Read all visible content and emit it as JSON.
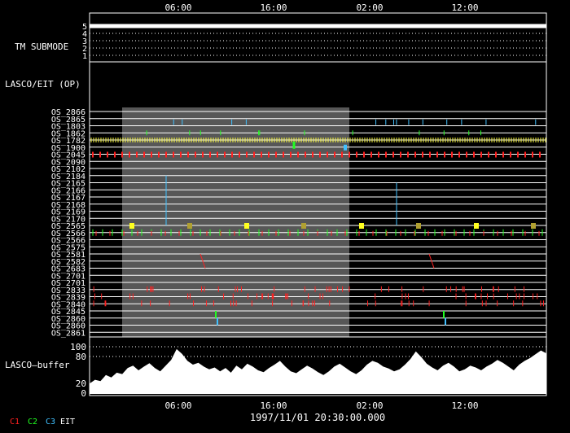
{
  "title": "1997/11/01 20:30:00.000",
  "time_ticks": [
    "06:00",
    "16:00",
    "02:00",
    "12:00"
  ],
  "tm_submode": {
    "label": "TM SUBMODE",
    "levels": [
      "5",
      "4",
      "3",
      "2",
      "1"
    ],
    "value": 5
  },
  "lasco_eit_label": "LASCO/EIT (OP)",
  "os_rows": [
    "OS_2866",
    "OS_2865",
    "OS_1803",
    "OS_1862",
    "OS_1782",
    "OS_1900",
    "OS_2045",
    "OS_2090",
    "OS_2102",
    "OS_2184",
    "OS_2165",
    "OS_2166",
    "OS_2167",
    "OS_2168",
    "OS_2169",
    "OS_2170",
    "OS_2565",
    "OS_2566",
    "OS_2566",
    "OS_2575",
    "OS_2581",
    "OS_2582",
    "OS_2683",
    "OS_2701",
    "OS_2701",
    "OS_2833",
    "OS_2839",
    "OS_2840",
    "OS_2845",
    "OS_2860",
    "OS_2860",
    "OS_2861"
  ],
  "buffer": {
    "label": "LASCO–buffer",
    "y_ticks": [
      "100",
      "80",
      "20",
      "0"
    ]
  },
  "legend": [
    {
      "label": "C1",
      "color": "#ff2020"
    },
    {
      "label": "C2",
      "color": "#20ff20"
    },
    {
      "label": "C3",
      "color": "#40c0ff"
    },
    {
      "label": "EIT",
      "color": "#ffffff"
    }
  ],
  "chart_data": {
    "type": "timeline",
    "title": "1997/11/01 20:30:00.000",
    "x_range": [
      "1997/11/01 00:00",
      "1997/11/02 20:00"
    ],
    "x_ticks": [
      "06:00",
      "16:00",
      "02:00",
      "12:00"
    ],
    "highlight_window": [
      "1997/11/01 03:00",
      "1997/11/02 03:00"
    ],
    "tm_submode_value": 5,
    "buffer_ylim": [
      0,
      100
    ],
    "buffer_profile": [
      22,
      30,
      27,
      40,
      35,
      45,
      42,
      55,
      60,
      50,
      58,
      65,
      55,
      48,
      60,
      72,
      95,
      85,
      70,
      62,
      66,
      58,
      52,
      56,
      48,
      55,
      45,
      60,
      52,
      64,
      58,
      50,
      46,
      55,
      62,
      70,
      58,
      48,
      44,
      52,
      60,
      54,
      46,
      40,
      48,
      58,
      64,
      56,
      48,
      42,
      50,
      62,
      70,
      66,
      58,
      54,
      48,
      52,
      62,
      74,
      90,
      78,
      64,
      56,
      50,
      60,
      66,
      58,
      48,
      52,
      60,
      56,
      50,
      58,
      64,
      72,
      66,
      58,
      50,
      62,
      70,
      76,
      84,
      92,
      86
    ]
  }
}
